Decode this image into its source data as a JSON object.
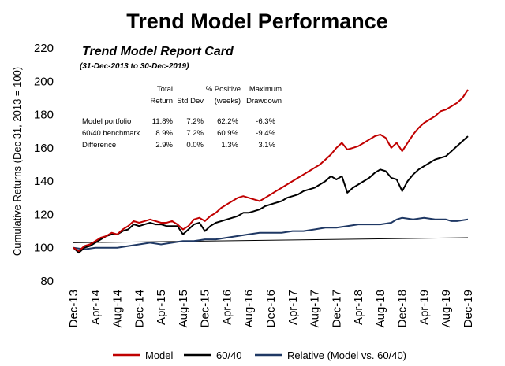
{
  "chart_data": {
    "type": "line",
    "title": "Trend Model Performance",
    "ylabel": "Cumulative Returns (Dec 31, 2013 = 100)",
    "xlabel": "",
    "ylim": [
      80,
      220
    ],
    "yticks": [
      80,
      100,
      120,
      140,
      160,
      180,
      200,
      220
    ],
    "x_ticks": [
      "Dec-13",
      "Apr-14",
      "Aug-14",
      "Dec-14",
      "Apr-15",
      "Aug-15",
      "Dec-15",
      "Apr-16",
      "Aug-16",
      "Dec-16",
      "Apr-17",
      "Aug-17",
      "Dec-17",
      "Apr-18",
      "Aug-18",
      "Dec-18",
      "Apr-19",
      "Aug-19",
      "Dec-19"
    ],
    "x_months": [
      0,
      4,
      8,
      12,
      16,
      20,
      24,
      28,
      32,
      36,
      40,
      44,
      48,
      52,
      56,
      60,
      64,
      68,
      72
    ],
    "series": [
      {
        "name": "Model",
        "color": "#c00000",
        "points": [
          [
            0,
            100
          ],
          [
            1,
            98
          ],
          [
            2,
            101
          ],
          [
            3,
            102
          ],
          [
            4,
            104
          ],
          [
            5,
            106
          ],
          [
            6,
            107
          ],
          [
            7,
            109
          ],
          [
            8,
            108
          ],
          [
            9,
            111
          ],
          [
            10,
            113
          ],
          [
            11,
            116
          ],
          [
            12,
            115
          ],
          [
            13,
            116
          ],
          [
            14,
            117
          ],
          [
            15,
            116
          ],
          [
            16,
            115
          ],
          [
            17,
            115
          ],
          [
            18,
            116
          ],
          [
            19,
            114
          ],
          [
            20,
            111
          ],
          [
            21,
            113
          ],
          [
            22,
            117
          ],
          [
            23,
            118
          ],
          [
            24,
            116
          ],
          [
            25,
            119
          ],
          [
            26,
            121
          ],
          [
            27,
            124
          ],
          [
            28,
            126
          ],
          [
            29,
            128
          ],
          [
            30,
            130
          ],
          [
            31,
            131
          ],
          [
            32,
            130
          ],
          [
            33,
            129
          ],
          [
            34,
            128
          ],
          [
            35,
            130
          ],
          [
            36,
            132
          ],
          [
            37,
            134
          ],
          [
            38,
            136
          ],
          [
            39,
            138
          ],
          [
            40,
            140
          ],
          [
            41,
            142
          ],
          [
            42,
            144
          ],
          [
            43,
            146
          ],
          [
            44,
            148
          ],
          [
            45,
            150
          ],
          [
            46,
            153
          ],
          [
            47,
            156
          ],
          [
            48,
            160
          ],
          [
            49,
            163
          ],
          [
            50,
            159
          ],
          [
            51,
            160
          ],
          [
            52,
            161
          ],
          [
            53,
            163
          ],
          [
            54,
            165
          ],
          [
            55,
            167
          ],
          [
            56,
            168
          ],
          [
            57,
            166
          ],
          [
            58,
            160
          ],
          [
            59,
            163
          ],
          [
            60,
            158
          ],
          [
            61,
            163
          ],
          [
            62,
            168
          ],
          [
            63,
            172
          ],
          [
            64,
            175
          ],
          [
            65,
            177
          ],
          [
            66,
            179
          ],
          [
            67,
            182
          ],
          [
            68,
            183
          ],
          [
            69,
            185
          ],
          [
            70,
            187
          ],
          [
            71,
            190
          ],
          [
            72,
            195
          ]
        ]
      },
      {
        "name": "60/40",
        "color": "#000000",
        "points": [
          [
            0,
            100
          ],
          [
            1,
            97
          ],
          [
            2,
            100
          ],
          [
            3,
            101
          ],
          [
            4,
            103
          ],
          [
            5,
            105
          ],
          [
            6,
            107
          ],
          [
            7,
            108
          ],
          [
            8,
            108
          ],
          [
            9,
            110
          ],
          [
            10,
            111
          ],
          [
            11,
            114
          ],
          [
            12,
            113
          ],
          [
            13,
            114
          ],
          [
            14,
            115
          ],
          [
            15,
            114
          ],
          [
            16,
            114
          ],
          [
            17,
            113
          ],
          [
            18,
            113
          ],
          [
            19,
            113
          ],
          [
            20,
            108
          ],
          [
            21,
            111
          ],
          [
            22,
            114
          ],
          [
            23,
            115
          ],
          [
            24,
            110
          ],
          [
            25,
            113
          ],
          [
            26,
            115
          ],
          [
            27,
            116
          ],
          [
            28,
            117
          ],
          [
            29,
            118
          ],
          [
            30,
            119
          ],
          [
            31,
            121
          ],
          [
            32,
            121
          ],
          [
            33,
            122
          ],
          [
            34,
            123
          ],
          [
            35,
            125
          ],
          [
            36,
            126
          ],
          [
            37,
            127
          ],
          [
            38,
            128
          ],
          [
            39,
            130
          ],
          [
            40,
            131
          ],
          [
            41,
            132
          ],
          [
            42,
            134
          ],
          [
            43,
            135
          ],
          [
            44,
            136
          ],
          [
            45,
            138
          ],
          [
            46,
            140
          ],
          [
            47,
            143
          ],
          [
            48,
            141
          ],
          [
            49,
            143
          ],
          [
            50,
            133
          ],
          [
            51,
            136
          ],
          [
            52,
            138
          ],
          [
            53,
            140
          ],
          [
            54,
            142
          ],
          [
            55,
            145
          ],
          [
            56,
            147
          ],
          [
            57,
            146
          ],
          [
            58,
            142
          ],
          [
            59,
            141
          ],
          [
            60,
            134
          ],
          [
            61,
            140
          ],
          [
            62,
            144
          ],
          [
            63,
            147
          ],
          [
            64,
            149
          ],
          [
            65,
            151
          ],
          [
            66,
            153
          ],
          [
            67,
            154
          ],
          [
            68,
            155
          ],
          [
            69,
            158
          ],
          [
            70,
            161
          ],
          [
            71,
            164
          ],
          [
            72,
            167
          ]
        ]
      },
      {
        "name": "Relative (Model vs. 60/40)",
        "color": "#1f3864",
        "points": [
          [
            0,
            100
          ],
          [
            2,
            99
          ],
          [
            4,
            100
          ],
          [
            6,
            100
          ],
          [
            8,
            100
          ],
          [
            10,
            101
          ],
          [
            12,
            102
          ],
          [
            14,
            103
          ],
          [
            16,
            102
          ],
          [
            18,
            103
          ],
          [
            20,
            104
          ],
          [
            22,
            104
          ],
          [
            24,
            105
          ],
          [
            26,
            105
          ],
          [
            28,
            106
          ],
          [
            30,
            107
          ],
          [
            32,
            108
          ],
          [
            34,
            109
          ],
          [
            36,
            109
          ],
          [
            38,
            109
          ],
          [
            40,
            110
          ],
          [
            42,
            110
          ],
          [
            44,
            111
          ],
          [
            46,
            112
          ],
          [
            48,
            112
          ],
          [
            50,
            113
          ],
          [
            52,
            114
          ],
          [
            54,
            114
          ],
          [
            56,
            114
          ],
          [
            58,
            115
          ],
          [
            59,
            117
          ],
          [
            60,
            118
          ],
          [
            62,
            117
          ],
          [
            64,
            118
          ],
          [
            66,
            117
          ],
          [
            68,
            117
          ],
          [
            69,
            116
          ],
          [
            70,
            116
          ],
          [
            72,
            117
          ]
        ]
      }
    ],
    "trendline": {
      "start": [
        0,
        103
      ],
      "end": [
        72,
        106
      ],
      "color": "#000000"
    },
    "report_card": {
      "title": "Trend Model Report Card",
      "subtitle": "(31-Dec-2013 to 30-Dec-2019)",
      "headers": [
        [
          "Total",
          "Return"
        ],
        [
          "",
          "Std Dev"
        ],
        [
          "% Positive",
          "(weeks)"
        ],
        [
          "Maximum",
          "Drawdown"
        ]
      ],
      "rows": [
        {
          "label": "Model portfolio",
          "values": [
            "11.8%",
            "7.2%",
            "62.2%",
            "-6.3%"
          ]
        },
        {
          "label": "60/40 benchmark",
          "values": [
            "8.9%",
            "7.2%",
            "60.9%",
            "-9.4%"
          ]
        },
        {
          "label": "Difference",
          "values": [
            "2.9%",
            "0.0%",
            "1.3%",
            "3.1%"
          ]
        }
      ]
    },
    "legend": {
      "position": "bottom",
      "entries": [
        "Model",
        "60/40",
        "Relative (Model vs. 60/40)"
      ]
    }
  }
}
